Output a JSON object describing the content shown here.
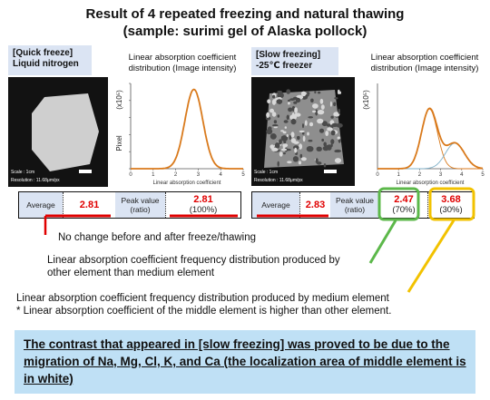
{
  "title": {
    "line1": "Result of 4 repeated freezing and natural thawing",
    "line2": "(sample: surimi gel of Alaska pollock)"
  },
  "quick": {
    "label_line1": "[Quick freeze]",
    "label_line2": "Liquid nitrogen",
    "chart_title_line1": "Linear absorption coefficient",
    "chart_title_line2": "distribution (Image intensity)",
    "image_scale": "Scale : 1cm",
    "image_resolution": "Resolution : 11.68μm/px",
    "ylabel": "Pixel",
    "yunit": "(x10⁵)",
    "xlabel": "Linear absorption coefficient",
    "table": {
      "average_label": "Average",
      "average_value": "2.81",
      "peak_label_line1": "Peak value",
      "peak_label_line2": "(ratio)",
      "peak_value": "2.81",
      "peak_ratio": "(100%)"
    }
  },
  "slow": {
    "label_line1": "[Slow freezing]",
    "label_line2": "-25℃ freezer",
    "chart_title_line1": "Linear absorption coefficient",
    "chart_title_line2": "distribution (Image intensity)",
    "image_scale": "Scale : 1cm",
    "image_resolution": "Resolution : 11.68μm/px",
    "yunit": "(x10⁵)",
    "xlabel": "Linear absorption coefficient",
    "table": {
      "average_label": "Average",
      "average_value": "2.83",
      "peak_label_line1": "Peak value",
      "peak_label_line2": "(ratio)",
      "peak1_value": "2.47",
      "peak1_ratio": "(70%)",
      "peak2_value": "3.68",
      "peak2_ratio": "(30%)"
    }
  },
  "notes": {
    "no_change": "No change before and after  freeze/thawing",
    "other_line1": "Linear absorption coefficient frequency distribution produced by",
    "other_line2": "other element than medium element",
    "medium_line1": "Linear absorption coefficient frequency distribution produced by medium element",
    "medium_line2": "* Linear absorption coefficient of the middle element is higher than other element."
  },
  "banner": {
    "text": "The contrast that appeared in [slow freezing] was proved to be due to the migration of Na, Mg, Cl, K, and Ca (the localization area of middle element is in white)"
  },
  "colors": {
    "curve": "#d97a1c",
    "curve_secondary": "#7fb0c8",
    "highlight_red": "#e00000",
    "green_box": "#5cb84a",
    "yellow_box": "#f2c200",
    "label_bg": "#dbe4f3",
    "banner_bg": "#bfe0f5"
  },
  "chart_data": [
    {
      "type": "line",
      "x": [
        0,
        1,
        2,
        3,
        4,
        5
      ],
      "xlim": [
        0,
        5
      ],
      "xticks": [
        "0",
        "1",
        "2",
        "3",
        "4",
        "5"
      ],
      "ylim": [
        0,
        10
      ],
      "yticks": [
        "0",
        "2",
        "4",
        "6",
        "8",
        "10"
      ],
      "series": [
        {
          "peak_x": 2.81,
          "peak_y": 9.3,
          "width": 0.4
        }
      ]
    },
    {
      "type": "line",
      "xlim": [
        0,
        5
      ],
      "xticks": [
        "0",
        "1",
        "2",
        "3",
        "4",
        "5"
      ],
      "ylim": [
        0,
        10
      ],
      "series": [
        {
          "peak_x": 2.47,
          "peak_y": 7.0,
          "width": 0.38
        },
        {
          "peak_x": 3.68,
          "peak_y": 3.0,
          "width": 0.45
        }
      ]
    }
  ]
}
